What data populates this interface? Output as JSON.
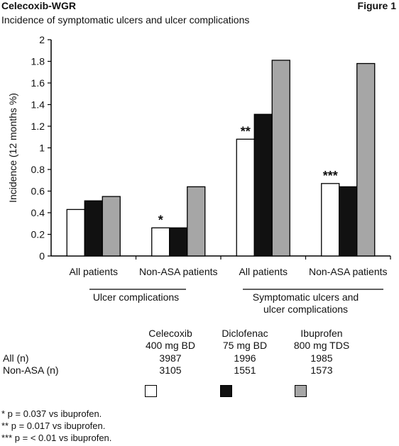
{
  "header": {
    "title": "Celecoxib-WGR",
    "figure_label": "Figure 1",
    "subtitle": "Incidence of symptomatic ulcers and ulcer complications"
  },
  "colors": {
    "celecoxib": "#ffffff",
    "diclofenac": "#111111",
    "ibuprofen": "#a6a6a6"
  },
  "chart_data": {
    "type": "bar",
    "ylabel": "Incidence (12 months %)",
    "ylim": [
      0,
      2
    ],
    "yticks": [
      "0",
      "0.2",
      "0.4",
      "0.6",
      "0.8",
      "1",
      "1.2",
      "1.4",
      "1.6",
      "1.8",
      "2"
    ],
    "categories": [
      "All patients",
      "Non-ASA patients",
      "All patients",
      "Non-ASA patients"
    ],
    "groups": [
      {
        "label": "Ulcer complications",
        "categories": [
          0,
          1
        ]
      },
      {
        "label": "Symptomatic ulcers and ulcer complications",
        "categories": [
          2,
          3
        ]
      }
    ],
    "series": [
      {
        "name": "Celecoxib 400 mg BD",
        "values": [
          0.43,
          0.26,
          1.08,
          0.67
        ]
      },
      {
        "name": "Diclofenac 75 mg BD",
        "values": [
          0.51,
          0.26,
          1.31,
          0.64
        ]
      },
      {
        "name": "Ibuprofen 800 mg TDS",
        "values": [
          0.55,
          0.64,
          1.81,
          1.78
        ]
      }
    ],
    "annotations": [
      {
        "category": 1,
        "series": 0,
        "text": "*"
      },
      {
        "category": 2,
        "series": 0,
        "text": "**"
      },
      {
        "category": 3,
        "series": 0,
        "text": "***"
      }
    ],
    "grid": false,
    "legend": "bottom"
  },
  "legend_table": {
    "columns": [
      {
        "line1": "Celecoxib",
        "line2": "400 mg BD",
        "all": "3987",
        "non_asa": "3105"
      },
      {
        "line1": "Diclofenac",
        "line2": "75 mg BD",
        "all": "1996",
        "non_asa": "1551"
      },
      {
        "line1": "Ibuprofen",
        "line2": "800 mg TDS",
        "all": "1985",
        "non_asa": "1573"
      }
    ],
    "row_all_label": "All (n)",
    "row_nonasa_label": "Non-ASA (n)"
  },
  "footnotes": [
    "* p = 0.037 vs ibuprofen.",
    "** p = 0.017 vs ibuprofen.",
    "*** p = < 0.01 vs ibuprofen."
  ]
}
